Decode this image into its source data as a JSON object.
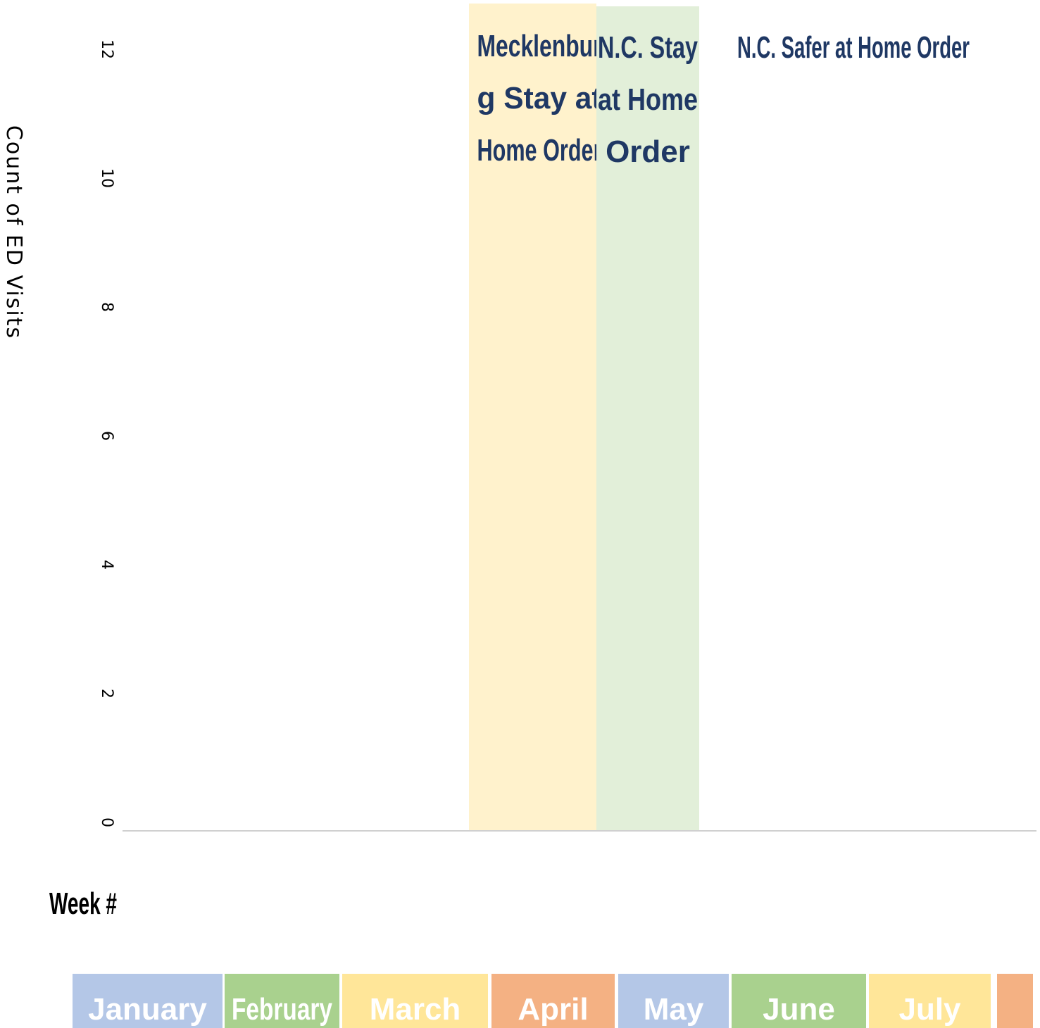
{
  "chart_data": {
    "type": "bar",
    "title": "",
    "ylabel": "Count of ED Visits",
    "xlabel": "Week #",
    "ylim": [
      0,
      12
    ],
    "yticks": [
      0,
      2,
      4,
      6,
      8,
      10,
      12
    ],
    "series": [],
    "annotations": [
      {
        "label_lines": [
          "Mecklenbur",
          "g Stay at",
          "Home Order"
        ],
        "color": "#fff2cc"
      },
      {
        "label_lines": [
          "N.C. Stay",
          "at Home",
          "Order"
        ],
        "color": "#e2efd9"
      },
      {
        "label_lines": [
          "N.C. Safer at Home Order"
        ],
        "color": "#ffffff"
      }
    ],
    "months": [
      {
        "label": "January",
        "color": "#b4c7e7"
      },
      {
        "label": "February",
        "color": "#a9d18e"
      },
      {
        "label": "March",
        "color": "#ffe699"
      },
      {
        "label": "April",
        "color": "#f4b183"
      },
      {
        "label": "May",
        "color": "#b4c7e7"
      },
      {
        "label": "June",
        "color": "#a9d18e"
      },
      {
        "label": "July",
        "color": "#ffe699"
      },
      {
        "label": "",
        "color": "#f4b183"
      }
    ]
  }
}
